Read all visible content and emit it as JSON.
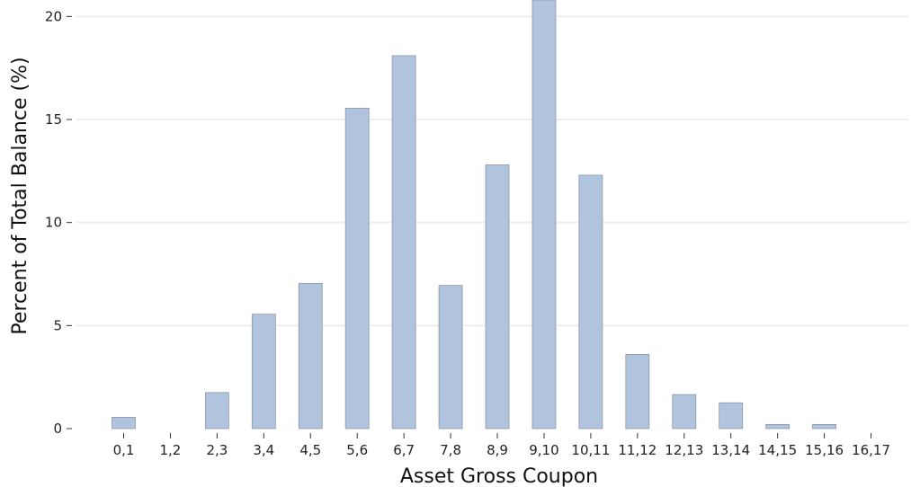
{
  "chart_data": {
    "type": "bar",
    "categories": [
      "0,1",
      "1,2",
      "2,3",
      "3,4",
      "4,5",
      "5,6",
      "6,7",
      "7,8",
      "8,9",
      "9,10",
      "10,11",
      "11,12",
      "12,13",
      "13,14",
      "14,15",
      "15,16",
      "16,17"
    ],
    "values": [
      0.55,
      0.0,
      1.75,
      5.55,
      7.05,
      15.55,
      18.1,
      6.95,
      12.8,
      20.9,
      12.3,
      3.6,
      1.65,
      1.25,
      0.2,
      0.2,
      0.0
    ],
    "title": "",
    "xlabel": "Asset Gross Coupon",
    "ylabel": "Percent of Total Balance (%)",
    "ylim": [
      0,
      20.8
    ],
    "yticks": [
      0,
      5,
      10,
      15,
      20
    ],
    "grid": "horizontal",
    "bar_color": "#b0c4de",
    "bar_edge_color": "#8d97a8",
    "grid_color": "#eeeeee"
  }
}
